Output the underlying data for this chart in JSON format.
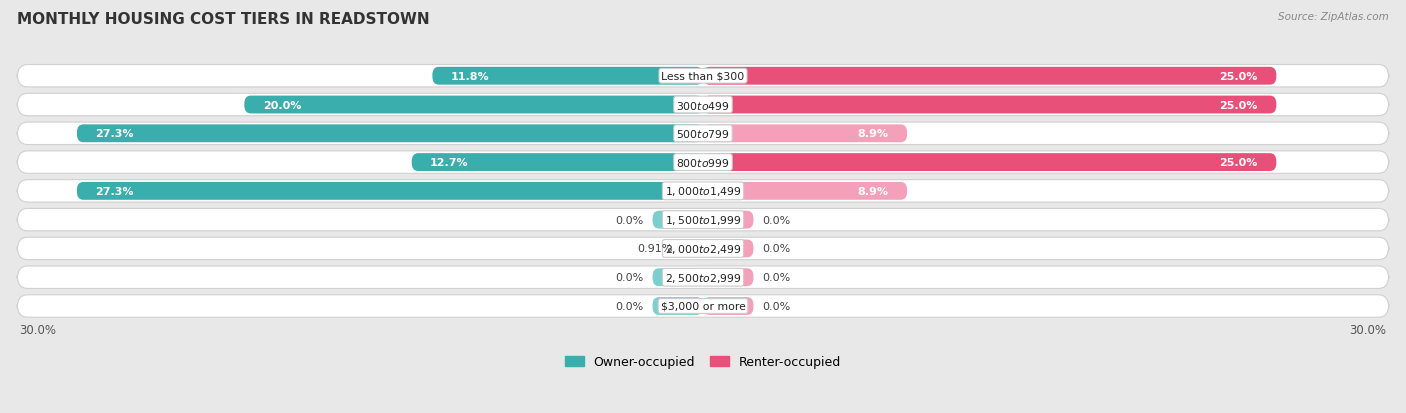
{
  "title": "MONTHLY HOUSING COST TIERS IN READSTOWN",
  "source": "Source: ZipAtlas.com",
  "categories": [
    "Less than $300",
    "$300 to $499",
    "$500 to $799",
    "$800 to $999",
    "$1,000 to $1,499",
    "$1,500 to $1,999",
    "$2,000 to $2,499",
    "$2,500 to $2,999",
    "$3,000 or more"
  ],
  "owner_values": [
    11.8,
    20.0,
    27.3,
    12.7,
    27.3,
    0.0,
    0.91,
    0.0,
    0.0
  ],
  "renter_values": [
    25.0,
    25.0,
    8.9,
    25.0,
    8.9,
    0.0,
    0.0,
    0.0,
    0.0
  ],
  "owner_color_dark": "#3AADAD",
  "owner_color_light": "#7DCECE",
  "renter_color_dark": "#E8507A",
  "renter_color_light": "#F4A0BB",
  "owner_label": "Owner-occupied",
  "renter_label": "Renter-occupied",
  "background_color": "#e8e8e8",
  "xlim": 30.0,
  "stub_size": 2.2,
  "title_fontsize": 11,
  "bar_height": 0.62,
  "label_inside_threshold": 5.0,
  "value_label_fontsize": 8.0,
  "cat_label_fontsize": 7.8
}
